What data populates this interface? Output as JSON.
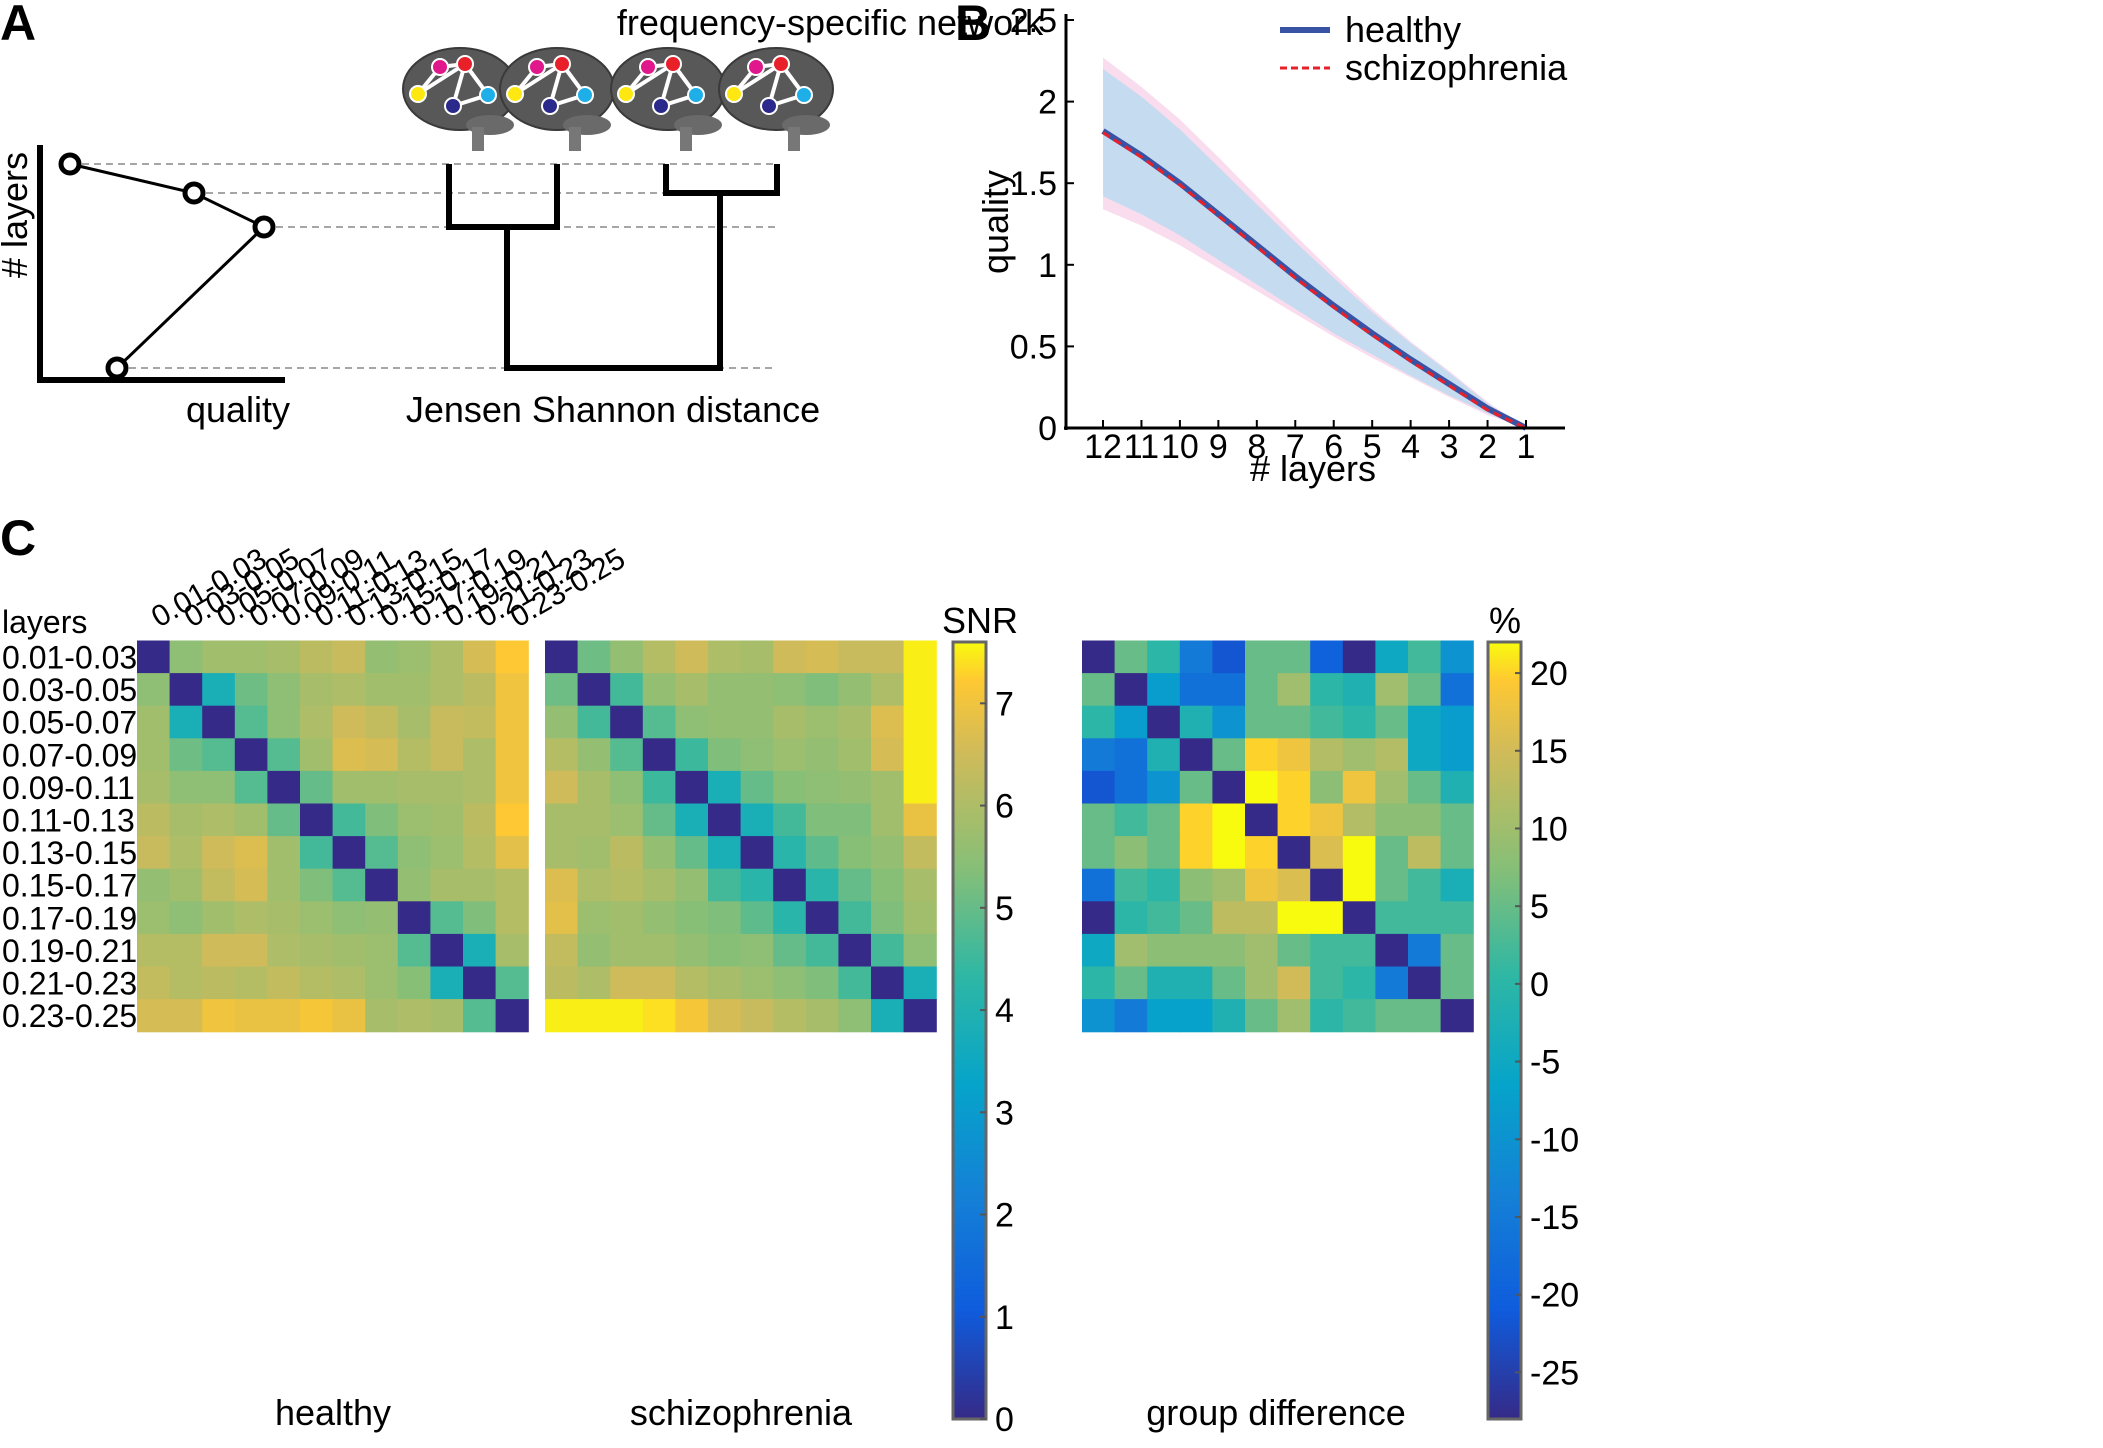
{
  "panel_letters": {
    "a": "A",
    "b": "B",
    "c": "C"
  },
  "panel_a": {
    "title": "frequency-specific network",
    "ylabel": "# layers",
    "xlabel_left": "quality",
    "xlabel_right": "Jensen Shannon distance",
    "brain_icons": [
      "brain-network-icon",
      "brain-network-icon",
      "brain-network-icon",
      "brain-network-icon"
    ],
    "node_colors": [
      "#e0188c",
      "#e8202a",
      "#ffe812",
      "#2b2a8c",
      "#1eaee8"
    ]
  },
  "chart_data": [
    {
      "type": "line",
      "ylabel": "quality",
      "xlabel": "# layers",
      "x": [
        12,
        11,
        10,
        9,
        8,
        7,
        6,
        5,
        4,
        3,
        2,
        1
      ],
      "x_tick_labels": [
        "12",
        "11",
        "10",
        "9",
        "8",
        "7",
        "6",
        "5",
        "4",
        "3",
        "2",
        "1"
      ],
      "ylim": [
        0,
        2.5
      ],
      "y_ticks": [
        "0",
        "0.5",
        "1",
        "1.5",
        "2",
        "2.5"
      ],
      "legend_position": "top-right",
      "series": [
        {
          "name": "healthy",
          "color": "#3953a4",
          "style": "solid",
          "values": [
            1.82,
            1.67,
            1.5,
            1.31,
            1.12,
            0.93,
            0.75,
            0.58,
            0.42,
            0.27,
            0.12,
            0.0
          ],
          "band_low": [
            1.42,
            1.31,
            1.18,
            1.03,
            0.88,
            0.73,
            0.58,
            0.45,
            0.32,
            0.2,
            0.09,
            0.0
          ],
          "band_high": [
            2.2,
            2.03,
            1.83,
            1.6,
            1.37,
            1.14,
            0.92,
            0.71,
            0.52,
            0.34,
            0.15,
            0.0
          ],
          "band_color": "#bcdaf0"
        },
        {
          "name": "schizophrenia",
          "color": "#e8202a",
          "style": "dashed",
          "values": [
            1.81,
            1.66,
            1.49,
            1.3,
            1.11,
            0.92,
            0.74,
            0.57,
            0.41,
            0.26,
            0.11,
            0.0
          ],
          "band_low": [
            1.34,
            1.24,
            1.12,
            0.98,
            0.84,
            0.7,
            0.56,
            0.43,
            0.31,
            0.19,
            0.08,
            0.0
          ],
          "band_high": [
            2.27,
            2.09,
            1.89,
            1.66,
            1.42,
            1.18,
            0.95,
            0.73,
            0.53,
            0.35,
            0.16,
            0.0
          ],
          "band_color": "#f8d6ea"
        }
      ]
    },
    {
      "type": "heatmap",
      "corner_label": "layers",
      "row_labels": [
        "0.01-0.03",
        "0.03-0.05",
        "0.05-0.07",
        "0.07-0.09",
        "0.09-0.11",
        "0.11-0.13",
        "0.13-0.15",
        "0.15-0.17",
        "0.17-0.19",
        "0.19-0.21",
        "0.21-0.23",
        "0.23-0.25"
      ],
      "col_labels": [
        "0.01-0.03",
        "0.03-0.05",
        "0.05-0.07",
        "0.07-0.09",
        "0.09-0.11",
        "0.11-0.13",
        "0.13-0.15",
        "0.15-0.17",
        "0.17-0.19",
        "0.19-0.21",
        "0.21-0.23",
        "0.23-0.25"
      ],
      "colormap": "parula",
      "panels": [
        {
          "title": "healthy",
          "vmin": 0,
          "vmax": 7.6,
          "values": [
            [
              0,
              5.5,
              5.8,
              5.8,
              5.9,
              6.2,
              6.4,
              5.6,
              5.7,
              6.0,
              6.6,
              7.2
            ],
            [
              5.5,
              0,
              3.8,
              5.1,
              5.5,
              5.9,
              6.0,
              5.8,
              5.8,
              6.0,
              6.2,
              7.0
            ],
            [
              5.8,
              3.8,
              0,
              4.8,
              5.5,
              6.0,
              6.5,
              6.3,
              5.9,
              6.4,
              6.3,
              7.0
            ],
            [
              5.8,
              5.1,
              4.8,
              0,
              4.8,
              5.8,
              6.7,
              6.6,
              6.1,
              6.4,
              6.0,
              7.0
            ],
            [
              5.9,
              5.5,
              5.5,
              4.8,
              0,
              5.0,
              5.8,
              5.8,
              5.9,
              5.9,
              6.0,
              7.0
            ],
            [
              6.2,
              5.9,
              6.0,
              5.8,
              5.0,
              0,
              4.6,
              5.3,
              5.7,
              5.8,
              6.2,
              7.2
            ],
            [
              6.4,
              6.0,
              6.5,
              6.7,
              5.8,
              4.6,
              0,
              4.8,
              5.5,
              5.7,
              6.1,
              6.8
            ],
            [
              5.6,
              5.8,
              6.3,
              6.6,
              5.8,
              5.3,
              4.8,
              0,
              5.6,
              5.9,
              5.9,
              6.1
            ],
            [
              5.7,
              5.5,
              5.8,
              6.0,
              5.9,
              5.7,
              5.5,
              5.6,
              0,
              4.8,
              5.3,
              6.1
            ],
            [
              6.1,
              6.1,
              6.5,
              6.5,
              6.0,
              5.9,
              5.8,
              5.7,
              4.8,
              0,
              3.8,
              5.9
            ],
            [
              6.3,
              6.1,
              6.2,
              6.1,
              6.3,
              6.1,
              6.0,
              5.7,
              5.4,
              3.8,
              0,
              4.8
            ],
            [
              6.6,
              6.6,
              7.0,
              6.9,
              6.9,
              7.1,
              6.9,
              5.9,
              6.0,
              5.9,
              4.8,
              0
            ]
          ],
          "colorbar_label": "SNR",
          "colorbar_ticks": [
            "0",
            "1",
            "2",
            "3",
            "4",
            "5",
            "6",
            "7"
          ]
        },
        {
          "title": "schizophrenia",
          "vmin": 0,
          "vmax": 7.6,
          "values": [
            [
              0,
              5.1,
              5.6,
              6.1,
              6.5,
              6.0,
              5.9,
              6.5,
              6.6,
              6.4,
              6.4,
              7.5
            ],
            [
              5.1,
              0,
              4.6,
              5.6,
              5.9,
              5.6,
              5.6,
              5.5,
              5.3,
              5.6,
              6.0,
              7.5
            ],
            [
              5.6,
              4.6,
              0,
              4.8,
              5.5,
              5.6,
              5.6,
              5.9,
              5.7,
              5.9,
              6.7,
              7.5
            ],
            [
              6.1,
              5.6,
              4.8,
              0,
              4.5,
              5.3,
              5.5,
              5.7,
              5.6,
              5.8,
              6.6,
              7.5
            ],
            [
              6.5,
              5.9,
              5.5,
              4.5,
              0,
              3.8,
              5.0,
              5.4,
              5.5,
              5.6,
              5.8,
              7.5
            ],
            [
              5.9,
              5.9,
              5.7,
              5.0,
              3.8,
              0,
              3.8,
              4.6,
              5.3,
              5.3,
              5.8,
              6.9
            ],
            [
              5.9,
              5.8,
              6.2,
              5.6,
              5.0,
              3.8,
              0,
              4.2,
              4.9,
              5.4,
              5.6,
              6.3
            ],
            [
              6.7,
              6.0,
              6.1,
              5.9,
              5.6,
              4.6,
              4.2,
              0,
              4.2,
              5.0,
              5.4,
              5.9
            ],
            [
              6.8,
              5.7,
              5.8,
              5.6,
              5.4,
              5.3,
              4.9,
              4.2,
              0,
              4.6,
              5.3,
              5.8
            ],
            [
              6.3,
              5.6,
              5.8,
              5.8,
              5.6,
              5.4,
              5.5,
              5.0,
              4.6,
              0,
              4.6,
              5.5
            ],
            [
              6.2,
              6.0,
              6.5,
              6.5,
              6.1,
              5.9,
              5.7,
              5.5,
              5.3,
              4.6,
              0,
              3.8
            ],
            [
              7.5,
              7.5,
              7.5,
              7.4,
              7.1,
              6.6,
              6.4,
              6.1,
              5.9,
              5.5,
              3.8,
              0
            ]
          ]
        },
        {
          "title": "group difference",
          "vmin": -28,
          "vmax": 22,
          "values": [
            [
              -28,
              5,
              0,
              -15,
              -22,
              5,
              5,
              -20,
              -28,
              -5,
              2,
              -10
            ],
            [
              5,
              -28,
              -8,
              -17,
              -17,
              5,
              10,
              0,
              -2,
              10,
              5,
              -17
            ],
            [
              0,
              -8,
              -28,
              -2,
              -10,
              5,
              5,
              2,
              0,
              5,
              -5,
              -8
            ],
            [
              -15,
              -17,
              -2,
              -28,
              5,
              20,
              18,
              12,
              10,
              12,
              -5,
              -8
            ],
            [
              -22,
              -17,
              -10,
              5,
              -28,
              22,
              20,
              8,
              18,
              10,
              5,
              -2
            ],
            [
              5,
              2,
              5,
              20,
              22,
              -28,
              20,
              18,
              12,
              8,
              8,
              5
            ],
            [
              5,
              8,
              5,
              20,
              22,
              20,
              -28,
              16,
              22,
              5,
              13,
              5
            ],
            [
              -17,
              2,
              0,
              8,
              10,
              18,
              16,
              -28,
              22,
              5,
              2,
              -3
            ],
            [
              -28,
              0,
              2,
              5,
              13,
              13,
              22,
              22,
              -28,
              2,
              2,
              2
            ],
            [
              -5,
              10,
              8,
              8,
              8,
              10,
              5,
              2,
              2,
              -28,
              -15,
              5
            ],
            [
              0,
              5,
              -2,
              -2,
              5,
              10,
              15,
              2,
              0,
              -15,
              -28,
              5
            ],
            [
              -10,
              -15,
              -7,
              -7,
              -2,
              5,
              10,
              0,
              2,
              5,
              5,
              -28
            ]
          ],
          "colorbar_label": "%",
          "colorbar_ticks": [
            "20",
            "15",
            "10",
            "5",
            "0",
            "-5",
            "-10",
            "-15",
            "-20",
            "-25"
          ]
        }
      ]
    }
  ]
}
